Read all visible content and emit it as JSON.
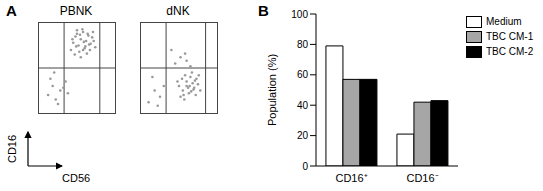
{
  "chart_data": [
    {
      "type": "scatter",
      "title": "PBNK",
      "annotations": [
        "A"
      ],
      "x_label": "CD56",
      "y_label": "CD16",
      "xlim": [
        0,
        100
      ],
      "ylim": [
        0,
        100
      ],
      "tick_labels": false,
      "grid": false,
      "color": "#999999",
      "x_gates": [
        33,
        80
      ],
      "y_gates": [
        50
      ],
      "x": [
        42,
        45,
        48,
        50,
        52,
        55,
        58,
        60,
        62,
        65,
        68,
        70,
        47,
        53,
        57,
        61,
        64,
        67,
        72,
        50,
        55,
        59,
        63,
        44,
        49,
        54,
        58,
        66,
        71,
        74,
        12,
        18,
        22,
        28,
        15,
        25,
        32,
        20,
        35,
        38
      ],
      "y": [
        70,
        78,
        85,
        88,
        75,
        82,
        90,
        72,
        80,
        86,
        77,
        84,
        65,
        68,
        93,
        74,
        88,
        70,
        80,
        92,
        62,
        79,
        66,
        82,
        74,
        87,
        70,
        76,
        90,
        73,
        20,
        30,
        15,
        25,
        38,
        10,
        28,
        45,
        35,
        22
      ]
    },
    {
      "type": "scatter",
      "title": "dNK",
      "xlim": [
        0,
        100
      ],
      "ylim": [
        0,
        100
      ],
      "tick_labels": false,
      "grid": false,
      "color": "#999999",
      "x_gates": [
        33,
        85
      ],
      "y_gates": [
        50
      ],
      "x": [
        50,
        55,
        60,
        65,
        70,
        75,
        52,
        58,
        63,
        68,
        73,
        78,
        48,
        57,
        62,
        67,
        72,
        54,
        60,
        66,
        71,
        76,
        56,
        64,
        69,
        45,
        52,
        60,
        40,
        58,
        65,
        10,
        18,
        25,
        30,
        15,
        22
      ],
      "y": [
        30,
        25,
        35,
        40,
        28,
        32,
        18,
        42,
        22,
        33,
        38,
        25,
        35,
        15,
        28,
        45,
        20,
        38,
        30,
        24,
        36,
        42,
        20,
        30,
        26,
        55,
        62,
        58,
        70,
        66,
        52,
        12,
        25,
        18,
        30,
        40,
        8
      ]
    },
    {
      "type": "bar",
      "annotations": [
        "B"
      ],
      "y_label": "Population (%)",
      "categories": [
        "CD16⁺",
        "CD16⁻"
      ],
      "series": [
        {
          "name": "Medium",
          "color": "#ffffff",
          "values": [
            79,
            21
          ]
        },
        {
          "name": "TBC CM-1",
          "color": "#a6a6a6",
          "values": [
            57,
            42
          ]
        },
        {
          "name": "TBC CM-2",
          "color": "#000000",
          "values": [
            57,
            43
          ]
        }
      ],
      "ylim": [
        0,
        100
      ],
      "yticks": [
        0,
        20,
        40,
        60,
        80,
        100
      ],
      "grid": false,
      "legend": "top-right"
    }
  ]
}
